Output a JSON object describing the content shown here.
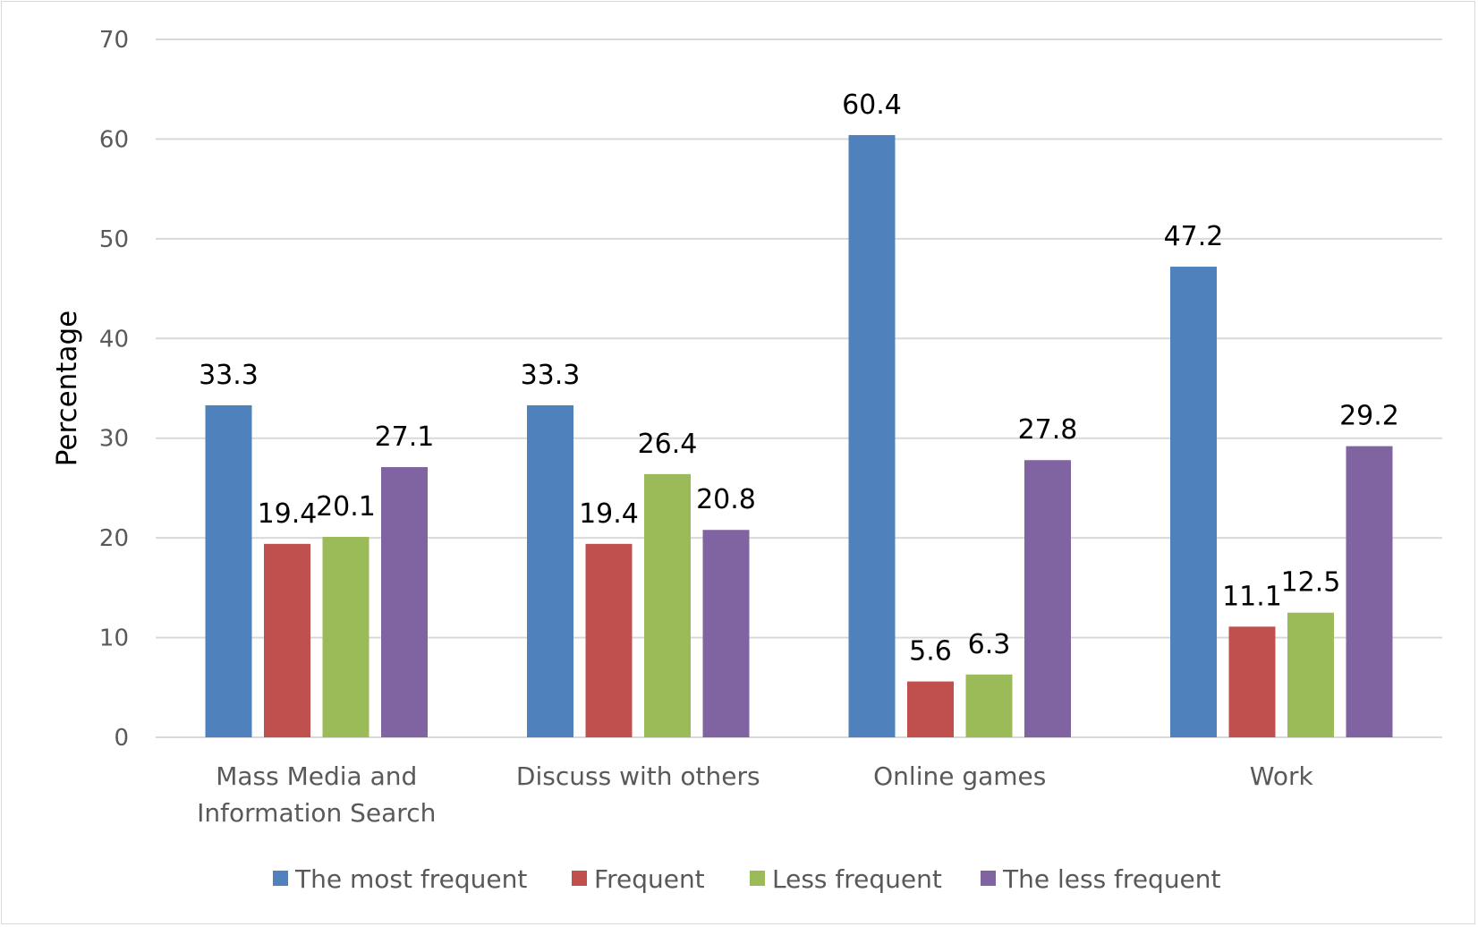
{
  "chart_data": {
    "type": "bar",
    "title": "",
    "xlabel": "",
    "ylabel": "Percentage",
    "ylim": [
      0,
      70
    ],
    "ytick_step": 10,
    "grid": true,
    "legend_position": "bottom",
    "categories": [
      [
        "Mass Media and",
        "Information Search"
      ],
      [
        "Discuss with others"
      ],
      [
        "Online games"
      ],
      [
        "Work"
      ]
    ],
    "series": [
      {
        "name": "The most frequent",
        "color": "#4f81bd",
        "values": [
          33.3,
          33.3,
          60.4,
          47.2
        ]
      },
      {
        "name": "Frequent",
        "color": "#c0504d",
        "values": [
          19.4,
          19.4,
          5.6,
          11.1
        ]
      },
      {
        "name": "Less frequent",
        "color": "#9bbb59",
        "values": [
          20.1,
          26.4,
          6.3,
          12.5
        ]
      },
      {
        "name": "The less frequent",
        "color": "#8064a2",
        "values": [
          27.1,
          20.8,
          27.8,
          29.2
        ]
      }
    ]
  }
}
